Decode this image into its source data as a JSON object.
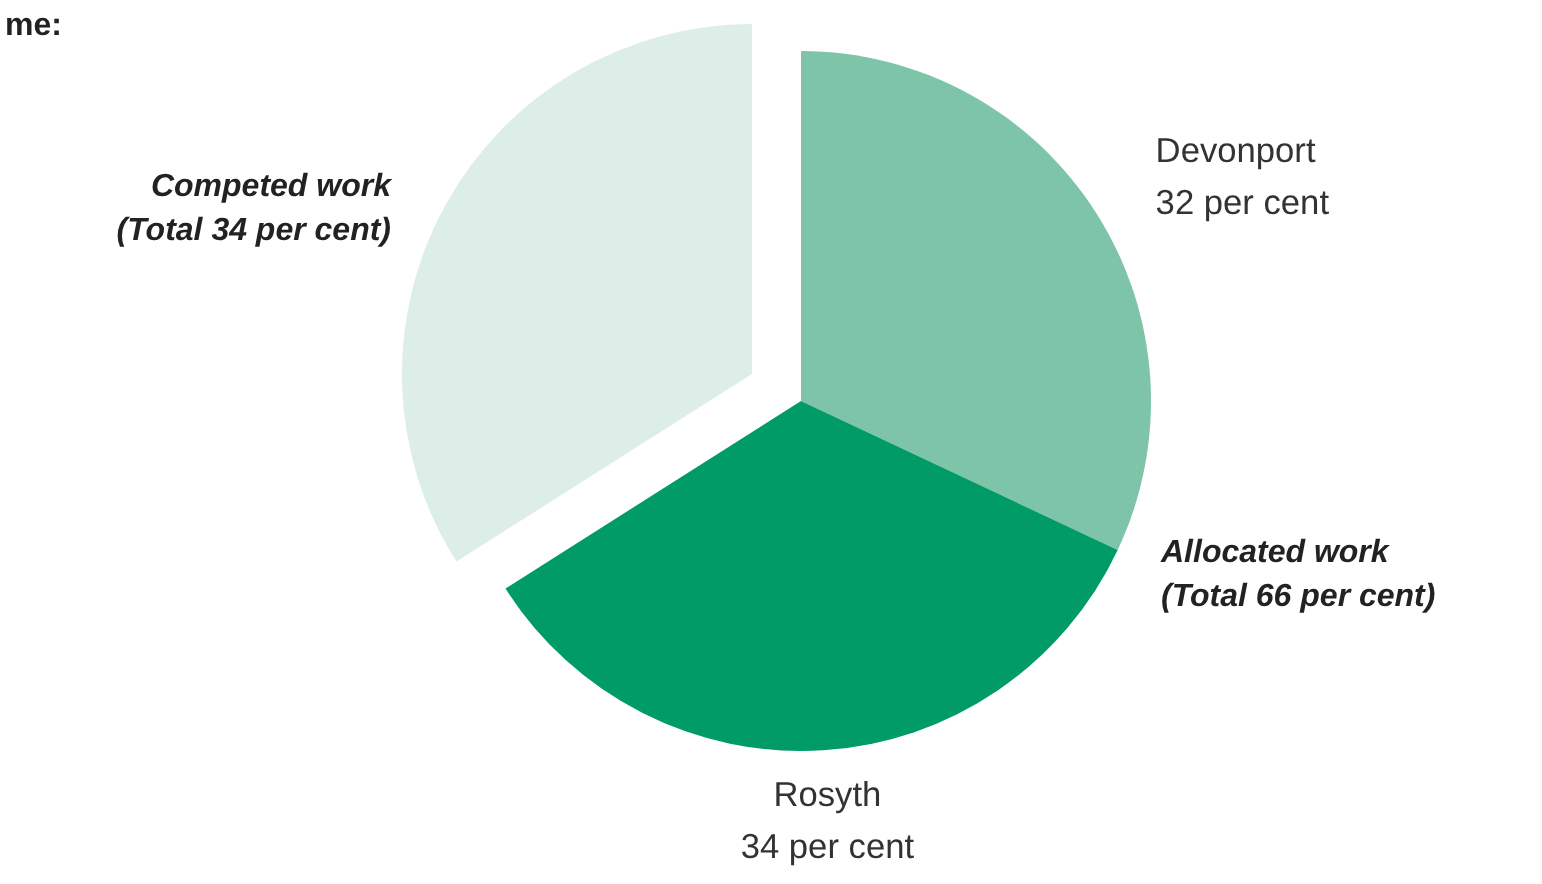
{
  "chart_data": {
    "type": "pie",
    "title": "me:",
    "categories": [
      "Devonport",
      "Rosyth",
      null
    ],
    "values": [
      32,
      34,
      34
    ],
    "colors": [
      "#7dc4a8",
      "#009b66",
      "#dceee7"
    ],
    "value_labels": [
      "32 per cent",
      "34 per cent",
      null
    ],
    "annotations": [
      "Competed work\n(Total 34 per cent)",
      "Allocated work\n(Total 66 per cent)"
    ]
  }
}
